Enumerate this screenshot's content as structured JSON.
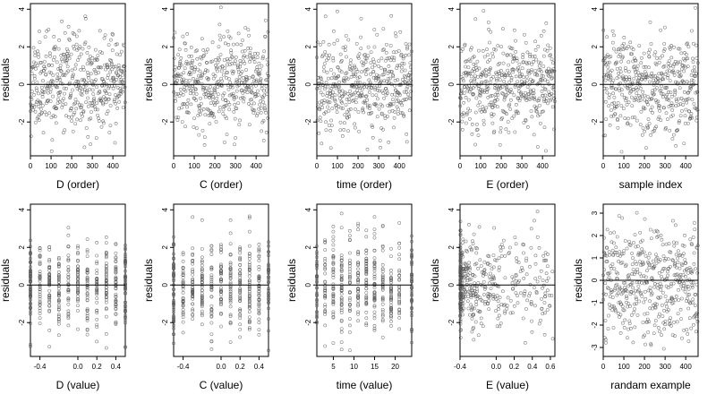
{
  "chart_data": [
    {
      "type": "scatter",
      "xlabel": "D (order)",
      "ylabel": "residuals",
      "xlim": [
        0,
        460
      ],
      "ylim": [
        -3.8,
        4.3
      ],
      "xticks": [
        0,
        100,
        200,
        300,
        400
      ],
      "xtick_labels": [
        "0",
        "100",
        "200",
        "300",
        "400"
      ],
      "yticks": [
        -2,
        0,
        2,
        4
      ],
      "ytick_labels": [
        "-2",
        "0",
        "2",
        "4"
      ],
      "hline": 0,
      "x_kind": "index",
      "n_points": 460,
      "seed": 11
    },
    {
      "type": "scatter",
      "xlabel": "C (order)",
      "ylabel": "residuals",
      "xlim": [
        0,
        460
      ],
      "ylim": [
        -3.8,
        4.3
      ],
      "xticks": [
        0,
        100,
        200,
        300,
        400
      ],
      "xtick_labels": [
        "0",
        "100",
        "200",
        "300",
        "400"
      ],
      "yticks": [
        -2,
        0,
        2,
        4
      ],
      "ytick_labels": [
        "-2",
        "0",
        "2",
        "4"
      ],
      "hline": 0,
      "x_kind": "index",
      "n_points": 460,
      "seed": 23
    },
    {
      "type": "scatter",
      "xlabel": "time (order)",
      "ylabel": "residuals",
      "xlim": [
        0,
        460
      ],
      "ylim": [
        -3.8,
        4.3
      ],
      "xticks": [
        0,
        100,
        200,
        300,
        400
      ],
      "xtick_labels": [
        "0",
        "100",
        "200",
        "300",
        "400"
      ],
      "yticks": [
        -2,
        0,
        2,
        4
      ],
      "ytick_labels": [
        "-2",
        "0",
        "2",
        "4"
      ],
      "hline": 0,
      "x_kind": "index",
      "n_points": 460,
      "seed": 37
    },
    {
      "type": "scatter",
      "xlabel": "E (order)",
      "ylabel": "residuals",
      "xlim": [
        0,
        460
      ],
      "ylim": [
        -3.8,
        4.3
      ],
      "xticks": [
        0,
        100,
        200,
        300,
        400
      ],
      "xtick_labels": [
        "0",
        "100",
        "200",
        "300",
        "400"
      ],
      "yticks": [
        -2,
        0,
        2,
        4
      ],
      "ytick_labels": [
        "-2",
        "0",
        "2",
        "4"
      ],
      "hline": 0,
      "x_kind": "index",
      "n_points": 460,
      "seed": 41
    },
    {
      "type": "scatter",
      "xlabel": "sample index",
      "ylabel": "residuals",
      "xlim": [
        0,
        460
      ],
      "ylim": [
        -3.8,
        4.3
      ],
      "xticks": [
        0,
        100,
        200,
        300,
        400
      ],
      "xtick_labels": [
        "0",
        "100",
        "200",
        "300",
        "400"
      ],
      "yticks": [
        -2,
        0,
        2,
        4
      ],
      "ytick_labels": [
        "-2",
        "0",
        "2",
        "4"
      ],
      "hline": 0,
      "x_kind": "index",
      "n_points": 460,
      "seed": 53
    },
    {
      "type": "scatter",
      "xlabel": "D (value)",
      "ylabel": "residuals",
      "xlim": [
        -0.5,
        0.5
      ],
      "ylim": [
        -3.8,
        4.3
      ],
      "xticks": [
        -0.4,
        0.0,
        0.2,
        0.4
      ],
      "xtick_labels": [
        "-0.4",
        "0.0",
        "0.2",
        "0.4"
      ],
      "yticks": [
        -2,
        0,
        2,
        4
      ],
      "ytick_labels": [
        "-2",
        "0",
        "2",
        "4"
      ],
      "hline": 0,
      "x_kind": "discrete",
      "x_levels": [
        -0.5,
        -0.4,
        -0.3,
        -0.2,
        -0.1,
        0.0,
        0.1,
        0.2,
        0.3,
        0.4,
        0.5
      ],
      "n_points": 460,
      "seed": 61
    },
    {
      "type": "scatter",
      "xlabel": "C (value)",
      "ylabel": "residuals",
      "xlim": [
        -0.5,
        0.5
      ],
      "ylim": [
        -3.8,
        4.3
      ],
      "xticks": [
        -0.4,
        0.0,
        0.2,
        0.4
      ],
      "xtick_labels": [
        "-0.4",
        "0.0",
        "0.2",
        "0.4"
      ],
      "yticks": [
        -2,
        0,
        2,
        4
      ],
      "ytick_labels": [
        "-2",
        "0",
        "2",
        "4"
      ],
      "hline": 0,
      "x_kind": "discrete",
      "x_levels": [
        -0.5,
        -0.4,
        -0.3,
        -0.2,
        -0.1,
        0.0,
        0.1,
        0.2,
        0.3,
        0.4,
        0.5
      ],
      "n_points": 460,
      "seed": 71
    },
    {
      "type": "scatter",
      "xlabel": "time (value)",
      "ylabel": "residuals",
      "xlim": [
        1,
        24
      ],
      "ylim": [
        -3.8,
        4.3
      ],
      "xticks": [
        5,
        10,
        15,
        20
      ],
      "xtick_labels": [
        "5",
        "10",
        "15",
        "20"
      ],
      "yticks": [
        -2,
        0,
        2,
        4
      ],
      "ytick_labels": [
        "-2",
        "0",
        "2",
        "4"
      ],
      "hline": 0,
      "x_kind": "discrete",
      "x_levels": [
        1,
        3,
        5,
        7,
        9,
        11,
        13,
        15,
        17,
        19,
        21,
        24
      ],
      "n_points": 460,
      "seed": 83
    },
    {
      "type": "scatter",
      "xlabel": "E (value)",
      "ylabel": "residuals",
      "xlim": [
        -0.4,
        0.65
      ],
      "ylim": [
        -3.8,
        4.3
      ],
      "xticks": [
        -0.4,
        0.0,
        0.2,
        0.4,
        0.6
      ],
      "xtick_labels": [
        "-0.4",
        "0.0",
        "0.2",
        "0.4",
        "0.6"
      ],
      "yticks": [
        -2,
        0,
        2,
        4
      ],
      "ytick_labels": [
        "-2",
        "0",
        "2",
        "4"
      ],
      "hline": 0,
      "x_kind": "skewed",
      "n_points": 460,
      "seed": 97
    },
    {
      "type": "scatter",
      "xlabel": "randam example",
      "ylabel": "residuals",
      "xlim": [
        0,
        460
      ],
      "ylim": [
        -3.4,
        3.4
      ],
      "xticks": [
        0,
        100,
        200,
        300,
        400
      ],
      "xtick_labels": [
        "0",
        "100",
        "200",
        "300",
        "400"
      ],
      "yticks": [
        -3,
        -2,
        -1,
        0,
        1,
        2,
        3
      ],
      "ytick_labels": [
        "-3",
        "-2",
        "-1",
        "0",
        "1",
        "2",
        "3"
      ],
      "hline": 0,
      "x_kind": "index",
      "n_points": 460,
      "seed": 101
    }
  ]
}
